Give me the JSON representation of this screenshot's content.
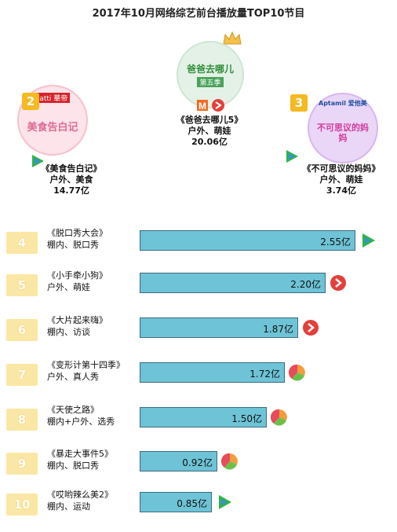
{
  "title": "2017年10月网络综艺前台播放量TOP10节目",
  "colors": {
    "bar": "#6ec3d6",
    "bar_border": "#3c6c80",
    "badge": "#fbe7a5",
    "badge_top": "#f5b921",
    "tencent": "#2db34a",
    "mango": "#e43f3a"
  },
  "podium": [
    {
      "rank": "2",
      "name": "《美食告白记》",
      "genre": "户外、美食",
      "value_label": "14.77亿",
      "platform_icon": "tencent-video-icon",
      "poster_text": "美食告白记",
      "poster_brand": "vatti 華帝"
    },
    {
      "rank": "1",
      "name": "《爸爸去哪儿5》",
      "genre": "户外、萌娃",
      "value_label": "20.06亿",
      "platform_icon": "mango-tv-icon",
      "poster_text": "爸爸去哪儿",
      "poster_sub": "第五季"
    },
    {
      "rank": "3",
      "name": "《不可思议的妈妈》",
      "genre": "户外、萌娃",
      "value_label": "3.74亿",
      "platform_icon": "tencent-video-icon",
      "poster_text": "不可思议的妈妈",
      "poster_brand": "Aptamil 爱他美"
    }
  ],
  "chart_data": {
    "type": "bar",
    "orientation": "horizontal",
    "title": "2017年10月网络综艺前台播放量TOP10节目",
    "unit": "亿",
    "categories": [
      "《脱口秀大会》",
      "《小手牵小狗》",
      "《大片起来嗨》",
      "《变形计第十四季》",
      "《天使之路》",
      "《暴走大事件5》",
      "《哎哟辣么美2》"
    ],
    "values": [
      2.55,
      2.2,
      1.87,
      1.72,
      1.5,
      0.92,
      0.85
    ],
    "xlim": [
      0,
      2.55
    ],
    "rows": [
      {
        "rank": "4",
        "name": "《脱口秀大会》",
        "genre": "棚内、脱口秀",
        "value": 2.55,
        "value_label": "2.55亿",
        "platform_icon": "tencent-video-icon"
      },
      {
        "rank": "5",
        "name": "《小手牵小狗》",
        "genre": "户外、萌娃",
        "value": 2.2,
        "value_label": "2.20亿",
        "platform_icon": "youku-icon"
      },
      {
        "rank": "6",
        "name": "《大片起来嗨》",
        "genre": "棚内、访谈",
        "value": 1.87,
        "value_label": "1.87亿",
        "platform_icon": "youku-icon"
      },
      {
        "rank": "7",
        "name": "《变形计第十四季》",
        "genre": "户外、真人秀",
        "value": 1.72,
        "value_label": "1.72亿",
        "platform_icon": "iqiyi-pie-icon"
      },
      {
        "rank": "8",
        "name": "《天使之路》",
        "genre": "棚内+户外、选秀",
        "value": 1.5,
        "value_label": "1.50亿",
        "platform_icon": "iqiyi-pie-icon"
      },
      {
        "rank": "9",
        "name": "《暴走大事件5》",
        "genre": "棚内、脱口秀",
        "value": 0.92,
        "value_label": "0.92亿",
        "platform_icon": "iqiyi-pie-icon"
      },
      {
        "rank": "10",
        "name": "《哎哟辣么美2》",
        "genre": "棚内、运动",
        "value": 0.85,
        "value_label": "0.85亿",
        "platform_icon": "tencent-video-icon"
      }
    ]
  }
}
